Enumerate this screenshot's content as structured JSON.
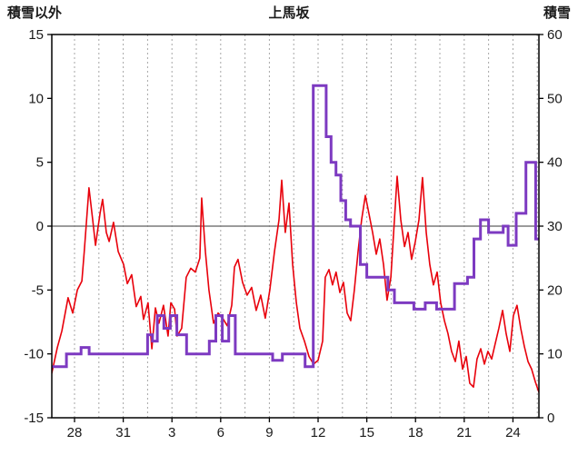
{
  "page": {
    "background": "#ffffff"
  },
  "chart_data": {
    "type": "line",
    "title": "上馬坂",
    "legend": "none",
    "grid": "vertical-dashed",
    "colors": {
      "red_line": "#e8000b",
      "purple_line": "#7d3ac1",
      "zero_line": "#7a7a7a",
      "grid": "#a6a6a6",
      "border": "#000000",
      "text": "#1a1a1a"
    },
    "left_axis": {
      "label": "積雪以外",
      "min": -15,
      "max": 15,
      "ticks": [
        15,
        10,
        5,
        0,
        -5,
        -10,
        -15
      ]
    },
    "right_axis": {
      "label": "積雪",
      "min": 0,
      "max": 60,
      "ticks": [
        60,
        50,
        40,
        30,
        20,
        10,
        0
      ]
    },
    "x_axis": {
      "min": 0,
      "max": 30,
      "tick_positions": [
        1.4,
        4.4,
        7.4,
        10.4,
        13.4,
        16.4,
        19.4,
        22.4,
        25.4,
        28.4
      ],
      "tick_labels": [
        "28",
        "31",
        "3",
        "6",
        "9",
        "12",
        "15",
        "18",
        "21",
        "24"
      ],
      "grid_start": 1.4,
      "grid_interval": 1.5
    },
    "series": [
      {
        "name": "積雪以外",
        "axis": "left",
        "type": "line",
        "color": "#e8000b",
        "width": 1.6,
        "points": [
          [
            0,
            -11.5
          ],
          [
            0.34,
            -9.5
          ],
          [
            0.62,
            -8.2
          ],
          [
            1.0,
            -5.6
          ],
          [
            1.29,
            -6.8
          ],
          [
            1.57,
            -5.0
          ],
          [
            1.85,
            -4.3
          ],
          [
            2.0,
            -2.0
          ],
          [
            2.29,
            3.0
          ],
          [
            2.52,
            0.5
          ],
          [
            2.69,
            -1.5
          ],
          [
            2.97,
            1.0
          ],
          [
            3.13,
            2.1
          ],
          [
            3.36,
            -0.5
          ],
          [
            3.53,
            -1.2
          ],
          [
            3.8,
            0.3
          ],
          [
            4.09,
            -2.0
          ],
          [
            4.42,
            -3.0
          ],
          [
            4.65,
            -4.5
          ],
          [
            4.92,
            -3.8
          ],
          [
            5.2,
            -6.3
          ],
          [
            5.48,
            -5.5
          ],
          [
            5.65,
            -7.3
          ],
          [
            5.93,
            -6.0
          ],
          [
            6.16,
            -9.6
          ],
          [
            6.38,
            -6.4
          ],
          [
            6.6,
            -7.6
          ],
          [
            6.88,
            -6.2
          ],
          [
            7.16,
            -8.6
          ],
          [
            7.33,
            -6.0
          ],
          [
            7.56,
            -6.5
          ],
          [
            7.72,
            -8.6
          ],
          [
            8.0,
            -8.0
          ],
          [
            8.28,
            -4.0
          ],
          [
            8.56,
            -3.3
          ],
          [
            8.84,
            -3.6
          ],
          [
            9.12,
            -2.5
          ],
          [
            9.23,
            2.2
          ],
          [
            9.46,
            -2.0
          ],
          [
            9.68,
            -5.0
          ],
          [
            9.96,
            -7.6
          ],
          [
            10.24,
            -6.8
          ],
          [
            10.52,
            -7.2
          ],
          [
            10.8,
            -7.8
          ],
          [
            11.08,
            -6.2
          ],
          [
            11.25,
            -3.2
          ],
          [
            11.47,
            -2.6
          ],
          [
            11.75,
            -4.4
          ],
          [
            12.03,
            -5.4
          ],
          [
            12.31,
            -4.8
          ],
          [
            12.59,
            -6.6
          ],
          [
            12.87,
            -5.4
          ],
          [
            13.15,
            -7.2
          ],
          [
            13.43,
            -5.0
          ],
          [
            13.71,
            -2.0
          ],
          [
            13.99,
            0.5
          ],
          [
            14.16,
            3.6
          ],
          [
            14.38,
            -0.5
          ],
          [
            14.61,
            1.8
          ],
          [
            14.83,
            -3.0
          ],
          [
            15.06,
            -6.0
          ],
          [
            15.28,
            -8.0
          ],
          [
            15.56,
            -9.0
          ],
          [
            15.84,
            -10.2
          ],
          [
            16.12,
            -10.8
          ],
          [
            16.4,
            -10.5
          ],
          [
            16.68,
            -9.0
          ],
          [
            16.84,
            -4.0
          ],
          [
            17.07,
            -3.4
          ],
          [
            17.29,
            -4.6
          ],
          [
            17.51,
            -3.6
          ],
          [
            17.74,
            -5.2
          ],
          [
            17.96,
            -4.4
          ],
          [
            18.19,
            -6.8
          ],
          [
            18.41,
            -7.4
          ],
          [
            18.63,
            -5.0
          ],
          [
            18.86,
            -2.0
          ],
          [
            19.08,
            0.5
          ],
          [
            19.31,
            2.4
          ],
          [
            19.53,
            1.0
          ],
          [
            19.76,
            -0.5
          ],
          [
            19.98,
            -2.2
          ],
          [
            20.2,
            -1.0
          ],
          [
            20.43,
            -3.0
          ],
          [
            20.65,
            -5.8
          ],
          [
            20.88,
            -4.0
          ],
          [
            21.1,
            0.5
          ],
          [
            21.27,
            3.9
          ],
          [
            21.49,
            0.5
          ],
          [
            21.72,
            -1.6
          ],
          [
            21.94,
            -0.5
          ],
          [
            22.16,
            -2.6
          ],
          [
            22.39,
            -1.2
          ],
          [
            22.61,
            0.5
          ],
          [
            22.83,
            3.8
          ],
          [
            23.06,
            -0.5
          ],
          [
            23.28,
            -3.0
          ],
          [
            23.5,
            -4.6
          ],
          [
            23.73,
            -3.6
          ],
          [
            23.95,
            -6.0
          ],
          [
            24.18,
            -7.4
          ],
          [
            24.4,
            -8.4
          ],
          [
            24.62,
            -9.8
          ],
          [
            24.85,
            -10.6
          ],
          [
            25.07,
            -9.0
          ],
          [
            25.3,
            -11.2
          ],
          [
            25.52,
            -10.2
          ],
          [
            25.74,
            -12.3
          ],
          [
            25.97,
            -12.6
          ],
          [
            26.19,
            -10.4
          ],
          [
            26.42,
            -9.6
          ],
          [
            26.64,
            -10.8
          ],
          [
            26.86,
            -9.8
          ],
          [
            27.09,
            -10.4
          ],
          [
            27.31,
            -9.2
          ],
          [
            27.53,
            -8.0
          ],
          [
            27.76,
            -6.6
          ],
          [
            27.98,
            -8.4
          ],
          [
            28.21,
            -9.8
          ],
          [
            28.43,
            -7.0
          ],
          [
            28.65,
            -6.2
          ],
          [
            28.88,
            -8.0
          ],
          [
            29.1,
            -9.4
          ],
          [
            29.33,
            -10.6
          ],
          [
            29.55,
            -11.2
          ],
          [
            29.78,
            -12.2
          ],
          [
            30.0,
            -13.0
          ]
        ]
      },
      {
        "name": "積雪",
        "axis": "right",
        "type": "step",
        "color": "#7d3ac1",
        "width": 3,
        "points": [
          [
            0,
            8
          ],
          [
            0.9,
            10
          ],
          [
            1.8,
            11
          ],
          [
            2.3,
            10
          ],
          [
            5.9,
            13
          ],
          [
            6.2,
            12
          ],
          [
            6.5,
            16
          ],
          [
            6.9,
            14
          ],
          [
            7.3,
            16
          ],
          [
            7.7,
            13
          ],
          [
            8.3,
            10
          ],
          [
            9.7,
            12
          ],
          [
            10.1,
            16
          ],
          [
            10.5,
            12
          ],
          [
            10.9,
            16
          ],
          [
            11.3,
            10
          ],
          [
            13.6,
            9
          ],
          [
            14.2,
            10
          ],
          [
            15.6,
            8
          ],
          [
            16.1,
            52
          ],
          [
            16.9,
            44
          ],
          [
            17.2,
            40
          ],
          [
            17.5,
            38
          ],
          [
            17.8,
            34
          ],
          [
            18.1,
            31
          ],
          [
            18.4,
            30
          ],
          [
            19.0,
            24
          ],
          [
            19.4,
            22
          ],
          [
            20.7,
            20
          ],
          [
            21.1,
            18
          ],
          [
            22.3,
            17
          ],
          [
            23.0,
            18
          ],
          [
            23.7,
            17
          ],
          [
            24.8,
            21
          ],
          [
            25.6,
            22
          ],
          [
            26.0,
            28
          ],
          [
            26.4,
            31
          ],
          [
            26.9,
            29
          ],
          [
            27.8,
            30
          ],
          [
            28.1,
            27
          ],
          [
            28.6,
            32
          ],
          [
            29.2,
            40
          ],
          [
            29.8,
            28
          ],
          [
            30,
            28
          ]
        ]
      }
    ]
  }
}
